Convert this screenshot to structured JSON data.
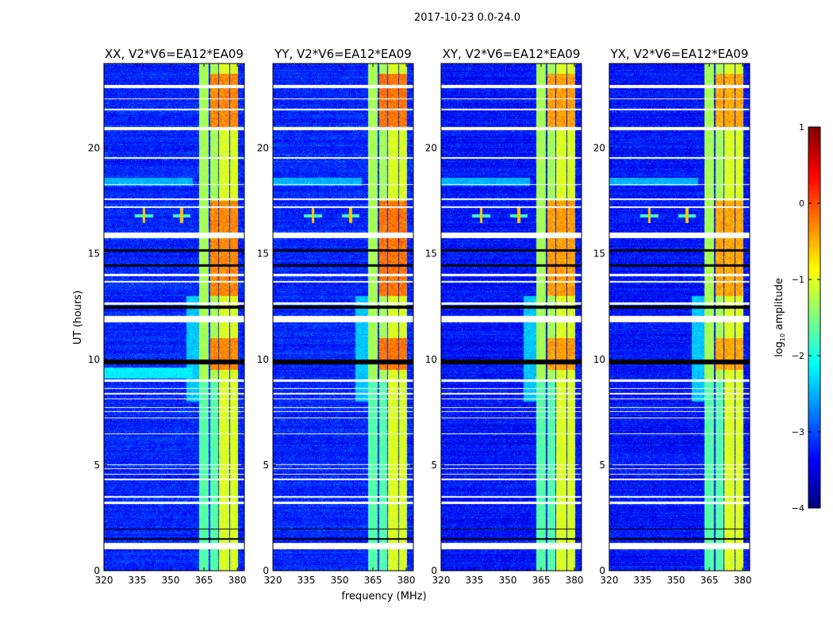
{
  "chart_data": {
    "type": "heatmap",
    "title": "2017-10-23 0.0-24.0",
    "xlabel": "frequency (MHz)",
    "ylabel": "UT (hours)",
    "xlim": [
      320,
      383.2
    ],
    "ylim": [
      0,
      24
    ],
    "xticks": [
      320,
      335,
      350,
      365,
      380
    ],
    "yticks": [
      0,
      5,
      10,
      15,
      20
    ],
    "colorbar": {
      "label_main": "log",
      "label_sub": "10",
      "label_rest": " amplitude",
      "colormap": "jet",
      "range": [
        -4,
        1
      ],
      "ticks": [
        -4,
        -3,
        -2,
        -1,
        0,
        1
      ],
      "tick_labels": [
        "−4",
        "−3",
        "−2",
        "−1",
        "0",
        "1"
      ]
    },
    "panels": [
      {
        "title": "XX, V2*V6=EA12*EA09",
        "hot_level": 0.0,
        "background": -3.2
      },
      {
        "title": "YY, V2*V6=EA12*EA09",
        "hot_level": 0.1,
        "background": -3.2
      },
      {
        "title": "XY, V2*V6=EA12*EA09",
        "hot_level": -0.1,
        "background": -3.3
      },
      {
        "title": "YX, V2*V6=EA12*EA09",
        "hot_level": -0.15,
        "background": -3.3
      }
    ],
    "signal_bands_mhz": [
      [
        363,
        367.3
      ],
      [
        367.8,
        371.3
      ],
      [
        371.8,
        376.3
      ],
      [
        376.8,
        380.3
      ]
    ],
    "flagged_ut_hours": [
      [
        1.0,
        1.3
      ],
      [
        3.15,
        3.25
      ],
      [
        3.45,
        3.52
      ],
      [
        4.3,
        4.35
      ],
      [
        4.55,
        4.6
      ],
      [
        4.8,
        4.85
      ],
      [
        5.0,
        5.05
      ],
      [
        6.45,
        6.5
      ],
      [
        7.2,
        7.25
      ],
      [
        7.5,
        7.55
      ],
      [
        7.7,
        7.75
      ],
      [
        8.1,
        8.15
      ],
      [
        8.35,
        8.4
      ],
      [
        8.6,
        8.65
      ],
      [
        8.95,
        9.05
      ],
      [
        11.75,
        12.05
      ],
      [
        12.6,
        12.7
      ],
      [
        13.65,
        13.7
      ],
      [
        13.95,
        14.05
      ],
      [
        15.75,
        16.0
      ],
      [
        17.15,
        17.25
      ],
      [
        17.55,
        17.6
      ],
      [
        18.25,
        18.3
      ],
      [
        19.5,
        19.55
      ],
      [
        20.85,
        21.0
      ],
      [
        21.8,
        21.85
      ],
      [
        22.3,
        22.35
      ],
      [
        22.85,
        23.0
      ]
    ],
    "dropout_ut_hours": [
      [
        1.45,
        1.55
      ],
      [
        1.95,
        2.0
      ],
      [
        9.75,
        10.0
      ],
      [
        12.4,
        12.55
      ],
      [
        14.4,
        14.5
      ],
      [
        15.1,
        15.2
      ]
    ],
    "rfi_events": [
      {
        "ut": 16.8,
        "mhz": 338
      },
      {
        "ut": 16.8,
        "mhz": 355
      }
    ]
  }
}
